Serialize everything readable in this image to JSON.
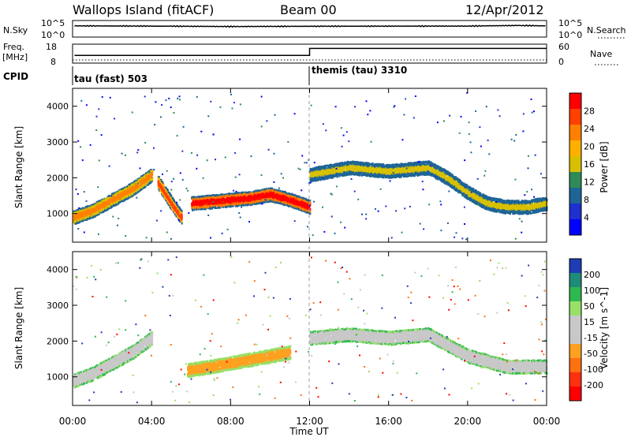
{
  "header": {
    "station": "Wallops Island (fitACF)",
    "beam": "Beam 00",
    "date": "12/Apr/2012"
  },
  "noise_panel": {
    "left_label": "N.Sky",
    "right_label": "N.Search",
    "left_ticks": [
      "10^5",
      "10^0"
    ],
    "right_ticks": [
      "10^5",
      "10^0"
    ]
  },
  "freq_panel": {
    "left_label_line1": "Freq.",
    "left_label_line2": "[MHz]",
    "left_ticks": [
      "18",
      "8"
    ],
    "right_label": "Nave",
    "right_ticks": [
      "60",
      "0"
    ]
  },
  "cpid_panel": {
    "label": "CPID",
    "segments": [
      {
        "text": "tau (fast) 503",
        "start_hour": 0
      },
      {
        "text": "themis (tau) 3310",
        "start_hour": 12
      }
    ]
  },
  "x_axis": {
    "title": "Time UT",
    "ticks": [
      "00:00",
      "04:00",
      "08:00",
      "12:00",
      "16:00",
      "20:00",
      "00:00"
    ]
  },
  "power_panel": {
    "y_label": "Slant Range [km]",
    "y_ticks": [
      "1000",
      "2000",
      "3000",
      "4000"
    ],
    "colorbar_label": "Power [dB]",
    "colorbar_ticks": [
      "28",
      "24",
      "20",
      "16",
      "12",
      "8",
      "4"
    ],
    "colorbar_colors": [
      "#ff0000",
      "#ff4000",
      "#ff8000",
      "#ffb000",
      "#d8c000",
      "#2e8b57",
      "#1e6496",
      "#1e30d0",
      "#0000ff"
    ]
  },
  "velocity_panel": {
    "y_label": "Slant Range [km]",
    "y_ticks": [
      "1000",
      "2000",
      "3000",
      "4000"
    ],
    "colorbar_label": "Velocity [m s^-1]",
    "colorbar_ticks": [
      "200",
      "100",
      "50",
      "15",
      "-15",
      "-50",
      "-100",
      "-200"
    ],
    "colorbar_colors": [
      "#1e3cb4",
      "#1e8c78",
      "#2eb850",
      "#98e068",
      "#c8c8c8",
      "#c8c8c8",
      "#ffa020",
      "#ff7010",
      "#ff3010",
      "#ff0000"
    ]
  },
  "chart_data": [
    {
      "type": "line",
      "title": "",
      "xlabel": "Time UT",
      "ylabel": "N.Sky",
      "x_range_hours": [
        0,
        24
      ],
      "yscale": "log",
      "ylim": [
        1,
        100000
      ],
      "series": [
        {
          "name": "N.Sky",
          "x": [
            0.1,
            4,
            8,
            12,
            16,
            20,
            22.5,
            24
          ],
          "values": [
            3000,
            2500,
            1800,
            2200,
            2400,
            2500,
            4000,
            3000
          ]
        }
      ]
    },
    {
      "type": "line",
      "title": "",
      "xlabel": "Time UT",
      "ylabel": "Freq. [MHz]",
      "x_range_hours": [
        0,
        24
      ],
      "ylim": [
        8,
        18
      ],
      "series": [
        {
          "name": "Freq.",
          "x": [
            0.1,
            12,
            12,
            24
          ],
          "values": [
            12,
            12,
            16,
            16
          ]
        }
      ]
    },
    {
      "type": "heatmap",
      "title": "",
      "xlabel": "Time UT",
      "ylabel": "Slant Range [km]",
      "colorbar": "Power [dB]",
      "x_range_hours": [
        0,
        24
      ],
      "ylim": [
        200,
        4500
      ],
      "bands": [
        {
          "t": [
            0,
            1,
            2,
            3,
            4
          ],
          "range": [
            900,
            1100,
            1400,
            1700,
            2100
          ],
          "power_db": 22
        },
        {
          "t": [
            4.3,
            5,
            5.5
          ],
          "range": [
            1900,
            1300,
            900
          ],
          "power_db": 24
        },
        {
          "t": [
            6,
            7,
            8,
            9,
            10,
            11,
            12
          ],
          "range": [
            1300,
            1350,
            1400,
            1450,
            1550,
            1400,
            1200
          ],
          "power_db": 28
        },
        {
          "t": [
            12,
            13,
            14,
            16,
            18,
            19,
            20,
            21,
            22,
            23,
            24
          ],
          "range": [
            2100,
            2200,
            2300,
            2200,
            2300,
            2000,
            1600,
            1300,
            1200,
            1200,
            1300
          ],
          "power_db": 14
        }
      ]
    },
    {
      "type": "heatmap",
      "title": "",
      "xlabel": "Time UT",
      "ylabel": "Slant Range [km]",
      "colorbar": "Velocity [m s^-1]",
      "x_range_hours": [
        0,
        24
      ],
      "ylim": [
        200,
        4500
      ],
      "bands": [
        {
          "t": [
            0,
            1,
            2,
            3,
            4
          ],
          "range": [
            900,
            1100,
            1400,
            1700,
            2100
          ],
          "velocity": 0
        },
        {
          "t": [
            5.8,
            7,
            8,
            9,
            10,
            11
          ],
          "range": [
            1200,
            1300,
            1400,
            1500,
            1600,
            1700
          ],
          "velocity": -40
        },
        {
          "t": [
            12,
            14,
            16,
            18,
            20,
            22,
            24
          ],
          "range": [
            2100,
            2200,
            2100,
            2200,
            1600,
            1300,
            1300
          ],
          "velocity": 0
        }
      ]
    }
  ]
}
